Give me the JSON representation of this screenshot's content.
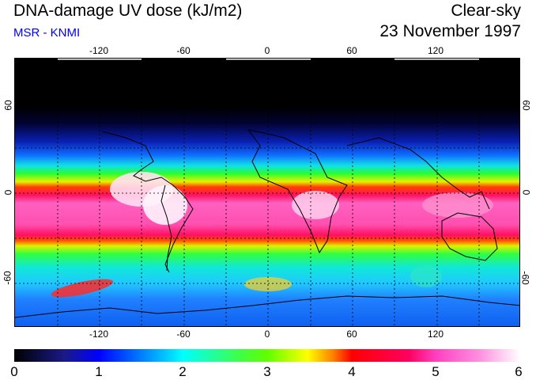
{
  "header": {
    "title": "DNA-damage UV dose (kJ/m2)",
    "subtitle": "MSR - KNMI",
    "mode": "Clear-sky",
    "date": "23 November 1997"
  },
  "map": {
    "lon_ticks_top": [
      "-120",
      "-60",
      "0",
      "60",
      "120"
    ],
    "lon_ticks_bottom": [
      "-120",
      "-60",
      "0",
      "60",
      "120"
    ],
    "lat_ticks_left": [
      "60",
      "0",
      "-60"
    ],
    "lat_ticks_right": [
      "60",
      "0",
      "-60"
    ]
  },
  "colorbar": {
    "ticks": [
      "0",
      "1",
      "2",
      "3",
      "4",
      "5",
      "6"
    ],
    "min": 0,
    "max": 6
  }
}
